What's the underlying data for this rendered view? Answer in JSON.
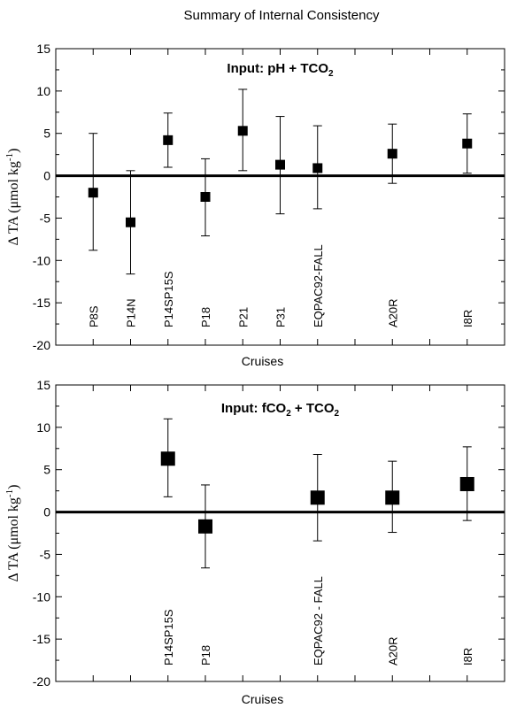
{
  "figure_title": "Summary of Internal Consistency",
  "chart_data": [
    {
      "type": "scatter",
      "title": "",
      "annotation_main": "Input: pH + TCO",
      "annotation_sub": "2",
      "xlabel": "Cruises",
      "ylabel_prefix": "Δ TA (μmol kg",
      "ylabel_sup": "-1",
      "ylabel_suffix": ")",
      "ylim": [
        -20,
        15
      ],
      "yticks": [
        15,
        10,
        5,
        0,
        -5,
        -10,
        -15,
        -20
      ],
      "x_slots": 11,
      "grid": false,
      "zero_line": true,
      "marker_size": "small",
      "points": [
        {
          "slot": 1,
          "label": "P8S",
          "value": -2.0,
          "err_low": -8.8,
          "err_high": 5.0
        },
        {
          "slot": 2,
          "label": "P14N",
          "value": -5.5,
          "err_low": -11.6,
          "err_high": 0.6
        },
        {
          "slot": 3,
          "label": "P14SP15S",
          "value": 4.2,
          "err_low": 1.0,
          "err_high": 7.4
        },
        {
          "slot": 4,
          "label": "P18",
          "value": -2.5,
          "err_low": -7.1,
          "err_high": 2.0
        },
        {
          "slot": 5,
          "label": "P21",
          "value": 5.3,
          "err_low": 0.6,
          "err_high": 10.2
        },
        {
          "slot": 6,
          "label": "P31",
          "value": 1.3,
          "err_low": -4.5,
          "err_high": 7.0
        },
        {
          "slot": 7,
          "label": "EQPAC92-FALL",
          "value": 0.9,
          "err_low": -3.9,
          "err_high": 5.9
        },
        {
          "slot": 9,
          "label": "A20R",
          "value": 2.6,
          "err_low": -0.9,
          "err_high": 6.1
        },
        {
          "slot": 11,
          "label": "I8R",
          "value": 3.8,
          "err_low": 0.3,
          "err_high": 7.3
        }
      ]
    },
    {
      "type": "scatter",
      "title": "",
      "annotation_main": "Input: fCO",
      "annotation_sub": "2",
      "annotation_tail": " + TCO",
      "annotation_sub2": "2",
      "xlabel": "Cruises",
      "ylabel_prefix": "Δ TA (μmol kg",
      "ylabel_sup": "-1",
      "ylabel_suffix": ")",
      "ylim": [
        -20,
        15
      ],
      "yticks": [
        15,
        10,
        5,
        0,
        -5,
        -10,
        -15,
        -20
      ],
      "x_slots": 11,
      "grid": false,
      "zero_line": true,
      "marker_size": "large",
      "points": [
        {
          "slot": 3,
          "label": "P14SP15S",
          "value": 6.3,
          "err_low": 1.8,
          "err_high": 11.0
        },
        {
          "slot": 4,
          "label": "P18",
          "value": -1.7,
          "err_low": -6.6,
          "err_high": 3.2
        },
        {
          "slot": 7,
          "label": "EQPAC92 - FALL",
          "value": 1.7,
          "err_low": -3.4,
          "err_high": 6.8
        },
        {
          "slot": 9,
          "label": "A20R",
          "value": 1.7,
          "err_low": -2.4,
          "err_high": 6.0
        },
        {
          "slot": 11,
          "label": "I8R",
          "value": 3.3,
          "err_low": -1.0,
          "err_high": 7.7
        }
      ]
    }
  ]
}
